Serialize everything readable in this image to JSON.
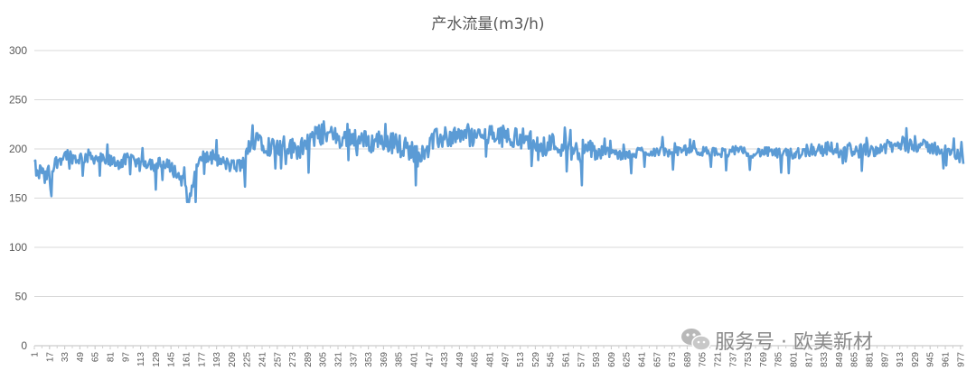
{
  "chart_data": {
    "type": "line",
    "title": "产水流量(m3/h)",
    "ylim": [
      0,
      300
    ],
    "yticks": [
      0,
      50,
      100,
      150,
      200,
      250,
      300
    ],
    "x_first": 1,
    "x_last": 980,
    "x_tick_labels": [
      "1",
      "17",
      "33",
      "49",
      "65",
      "81",
      "97",
      "113",
      "129",
      "145",
      "161",
      "177",
      "193",
      "209",
      "225",
      "241",
      "257",
      "273",
      "289",
      "305",
      "321",
      "337",
      "353",
      "369",
      "385",
      "401",
      "417",
      "433",
      "449",
      "465",
      "481",
      "497",
      "513",
      "529",
      "545",
      "561",
      "577",
      "593",
      "609",
      "625",
      "641",
      "657",
      "673",
      "689",
      "705",
      "721",
      "737",
      "753",
      "769",
      "785",
      "801",
      "817",
      "833",
      "849",
      "865",
      "881",
      "897",
      "913",
      "929",
      "945",
      "961",
      "977"
    ],
    "grid": "horizontal",
    "legend": "none",
    "series_color": "#5b9bd5",
    "series": [
      {
        "anchors": [
          [
            1,
            185
          ],
          [
            5,
            170
          ],
          [
            8,
            182
          ],
          [
            12,
            168
          ],
          [
            16,
            178
          ],
          [
            19,
            152
          ],
          [
            22,
            185
          ],
          [
            28,
            190
          ],
          [
            35,
            195
          ],
          [
            45,
            190
          ],
          [
            60,
            193
          ],
          [
            75,
            188
          ],
          [
            90,
            186
          ],
          [
            100,
            189
          ],
          [
            110,
            183
          ],
          [
            120,
            187
          ],
          [
            135,
            184
          ],
          [
            145,
            182
          ],
          [
            150,
            176
          ],
          [
            160,
            165
          ],
          [
            165,
            148
          ],
          [
            170,
            175
          ],
          [
            178,
            192
          ],
          [
            190,
            190
          ],
          [
            200,
            186
          ],
          [
            210,
            182
          ],
          [
            220,
            184
          ],
          [
            228,
            198
          ],
          [
            235,
            215
          ],
          [
            245,
            205
          ],
          [
            255,
            200
          ],
          [
            265,
            203
          ],
          [
            275,
            200
          ],
          [
            285,
            202
          ],
          [
            295,
            212
          ],
          [
            305,
            215
          ],
          [
            315,
            213
          ],
          [
            325,
            210
          ],
          [
            335,
            213
          ],
          [
            345,
            210
          ],
          [
            355,
            206
          ],
          [
            365,
            210
          ],
          [
            375,
            207
          ],
          [
            385,
            205
          ],
          [
            395,
            200
          ],
          [
            405,
            195
          ],
          [
            415,
            203
          ],
          [
            425,
            210
          ],
          [
            435,
            212
          ],
          [
            450,
            213
          ],
          [
            465,
            212
          ],
          [
            480,
            214
          ],
          [
            495,
            213
          ],
          [
            510,
            212
          ],
          [
            520,
            210
          ],
          [
            530,
            205
          ],
          [
            540,
            207
          ],
          [
            550,
            205
          ],
          [
            560,
            202
          ],
          [
            570,
            198
          ],
          [
            580,
            200
          ],
          [
            590,
            198
          ],
          [
            600,
            196
          ],
          [
            610,
            197
          ],
          [
            620,
            192
          ],
          [
            630,
            195
          ],
          [
            640,
            198
          ],
          [
            650,
            197
          ],
          [
            660,
            198
          ],
          [
            670,
            196
          ],
          [
            680,
            198
          ],
          [
            690,
            199
          ],
          [
            700,
            198
          ],
          [
            710,
            197
          ],
          [
            720,
            196
          ],
          [
            730,
            197
          ],
          [
            740,
            198
          ],
          [
            750,
            197
          ],
          [
            760,
            196
          ],
          [
            770,
            197
          ],
          [
            780,
            196
          ],
          [
            790,
            195
          ],
          [
            800,
            196
          ],
          [
            810,
            197
          ],
          [
            820,
            200
          ],
          [
            830,
            199
          ],
          [
            840,
            201
          ],
          [
            850,
            198
          ],
          [
            860,
            200
          ],
          [
            870,
            198
          ],
          [
            880,
            199
          ],
          [
            890,
            200
          ],
          [
            900,
            202
          ],
          [
            910,
            203
          ],
          [
            920,
            205
          ],
          [
            930,
            204
          ],
          [
            940,
            202
          ],
          [
            950,
            201
          ],
          [
            960,
            198
          ],
          [
            970,
            195
          ],
          [
            980,
            190
          ]
        ],
        "min": 146,
        "max": 228
      }
    ]
  },
  "watermark": {
    "text": "服务号 · 欧美新材",
    "icon": "wechat-icon"
  }
}
